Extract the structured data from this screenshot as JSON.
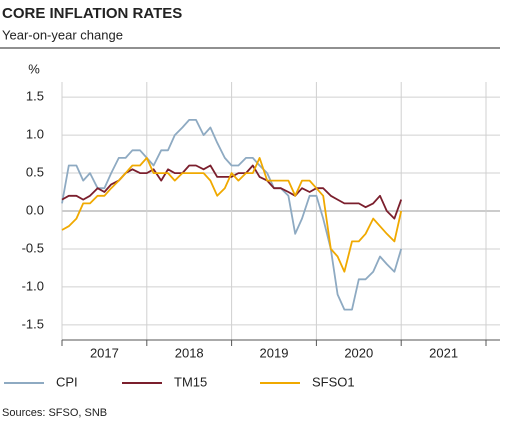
{
  "chart_data": {
    "type": "line",
    "title": "CORE INFLATION RATES",
    "subtitle": "Year-on-year change",
    "y_unit": "%",
    "source": "Sources: SFSO, SNB",
    "x": [
      2017,
      2017.08,
      2017.17,
      2017.25,
      2017.33,
      2017.42,
      2017.5,
      2017.58,
      2017.67,
      2017.75,
      2017.83,
      2017.92,
      2018,
      2018.08,
      2018.17,
      2018.25,
      2018.33,
      2018.42,
      2018.5,
      2018.58,
      2018.67,
      2018.75,
      2018.83,
      2018.92,
      2019,
      2019.08,
      2019.17,
      2019.25,
      2019.33,
      2019.42,
      2019.5,
      2019.58,
      2019.67,
      2019.75,
      2019.83,
      2019.92,
      2020,
      2020.08,
      2020.17,
      2020.25,
      2020.33,
      2020.42,
      2020.5,
      2020.58,
      2020.67,
      2020.75,
      2020.83,
      2020.92,
      2021
    ],
    "series": [
      {
        "name": "CPI",
        "color": "#8eaac2",
        "values": [
          0.1,
          0.6,
          0.6,
          0.4,
          0.5,
          0.3,
          0.3,
          0.5,
          0.7,
          0.7,
          0.8,
          0.8,
          0.7,
          0.6,
          0.8,
          0.8,
          1.0,
          1.1,
          1.2,
          1.2,
          1.0,
          1.1,
          0.9,
          0.7,
          0.6,
          0.6,
          0.7,
          0.7,
          0.6,
          0.5,
          0.3,
          0.3,
          0.2,
          -0.3,
          -0.1,
          0.2,
          0.2,
          -0.1,
          -0.5,
          -1.1,
          -1.3,
          -1.3,
          -0.9,
          -0.9,
          -0.8,
          -0.6,
          -0.7,
          -0.8,
          -0.5
        ]
      },
      {
        "name": "TM15",
        "color": "#7b1f2d",
        "values": [
          0.15,
          0.2,
          0.2,
          0.15,
          0.2,
          0.3,
          0.25,
          0.35,
          0.4,
          0.5,
          0.55,
          0.5,
          0.5,
          0.55,
          0.4,
          0.55,
          0.5,
          0.5,
          0.6,
          0.6,
          0.55,
          0.6,
          0.45,
          0.45,
          0.45,
          0.5,
          0.5,
          0.6,
          0.45,
          0.4,
          0.3,
          0.3,
          0.25,
          0.2,
          0.3,
          0.25,
          0.3,
          0.3,
          0.2,
          0.15,
          0.1,
          0.1,
          0.1,
          0.05,
          0.1,
          0.2,
          0,
          -0.1,
          0.15
        ]
      },
      {
        "name": "SFSO1",
        "color": "#f0a900",
        "values": [
          -0.25,
          -0.2,
          -0.1,
          0.1,
          0.1,
          0.2,
          0.2,
          0.3,
          0.4,
          0.5,
          0.6,
          0.6,
          0.7,
          0.5,
          0.5,
          0.5,
          0.4,
          0.5,
          0.5,
          0.5,
          0.5,
          0.4,
          0.2,
          0.3,
          0.5,
          0.4,
          0.5,
          0.5,
          0.7,
          0.4,
          0.4,
          0.4,
          0.4,
          0.2,
          0.4,
          0.4,
          0.3,
          0.2,
          -0.5,
          -0.6,
          -0.8,
          -0.4,
          -0.4,
          -0.3,
          -0.1,
          -0.2,
          -0.3,
          -0.4,
          0
        ]
      }
    ],
    "xlim": [
      2017,
      2022
    ],
    "xticks": [
      2017,
      2018,
      2019,
      2020,
      2021,
      2022
    ],
    "year_labels": [
      {
        "value": 2017.5,
        "label": "2017"
      },
      {
        "value": 2018.5,
        "label": "2018"
      },
      {
        "value": 2019.5,
        "label": "2019"
      },
      {
        "value": 2020.5,
        "label": "2020"
      },
      {
        "value": 2021.5,
        "label": "2021"
      }
    ],
    "ylim": [
      -1.7,
      1.7
    ],
    "yticks": [
      -1.5,
      {
        "value": -1,
        "label": "-1.0"
      },
      -0.5,
      {
        "value": 0,
        "label": "0.0"
      },
      0.5,
      {
        "value": 1,
        "label": "1.0"
      },
      1.5
    ],
    "grid": true,
    "legend": "bottom"
  }
}
